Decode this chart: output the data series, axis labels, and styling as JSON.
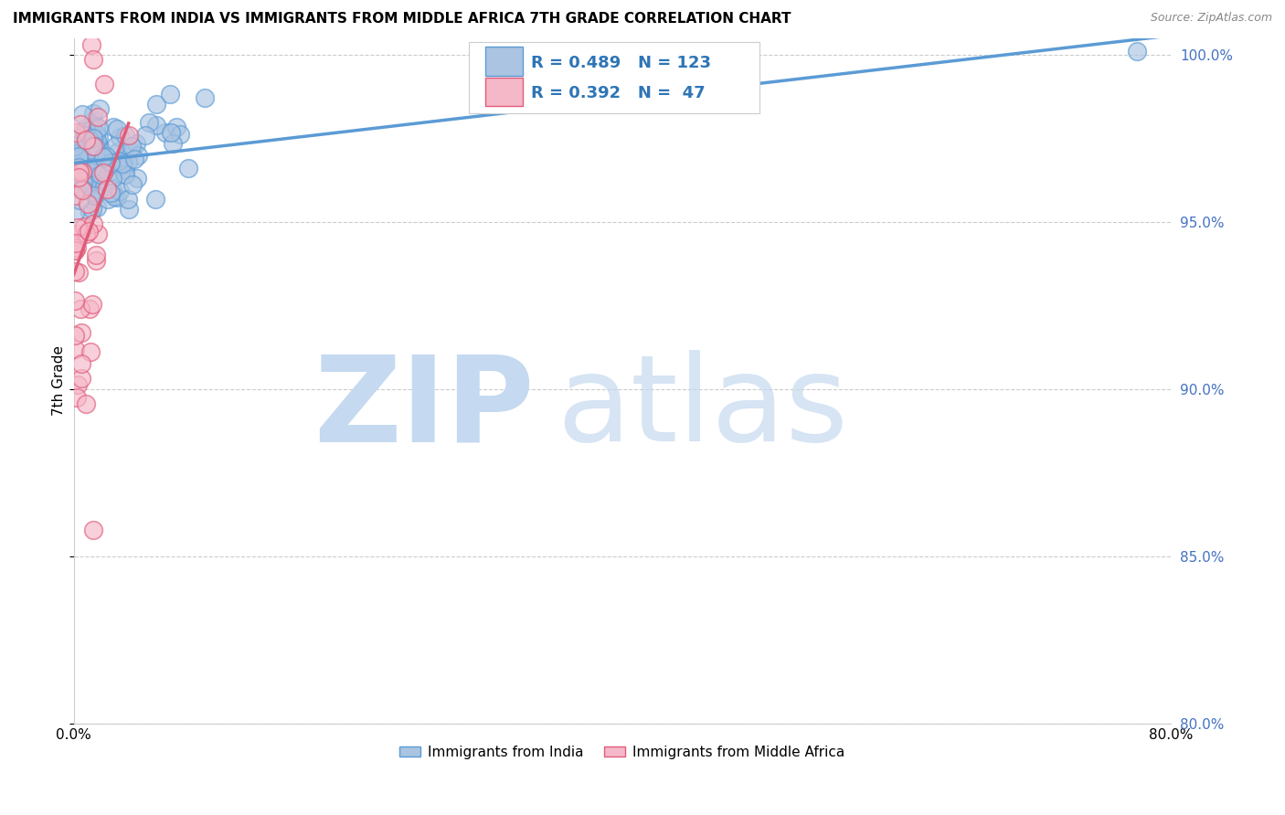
{
  "title": "IMMIGRANTS FROM INDIA VS IMMIGRANTS FROM MIDDLE AFRICA 7TH GRADE CORRELATION CHART",
  "source": "Source: ZipAtlas.com",
  "ylabel": "7th Grade",
  "legend_india": "Immigrants from India",
  "legend_africa": "Immigrants from Middle Africa",
  "r_india": 0.489,
  "n_india": 123,
  "r_africa": 0.392,
  "n_africa": 47,
  "color_india_fill": "#aac4e2",
  "color_india_edge": "#5b9bd5",
  "color_africa_fill": "#f5b8c8",
  "color_africa_edge": "#e05c7a",
  "color_india_trend": "#5b9bd5",
  "color_africa_trend": "#e05c7a",
  "color_right_axis": "#4472c4",
  "color_legend_text": "#2e75b6",
  "grid_color": "#cccccc",
  "xlim": [
    0.0,
    0.8
  ],
  "ylim": [
    0.8,
    1.005
  ],
  "yticks": [
    0.8,
    0.85,
    0.9,
    0.95,
    1.0
  ],
  "xtick_show": [
    0.0,
    0.8
  ],
  "watermark_zip_color": "#c5d9f0",
  "watermark_atlas_color": "#c5d9f0"
}
